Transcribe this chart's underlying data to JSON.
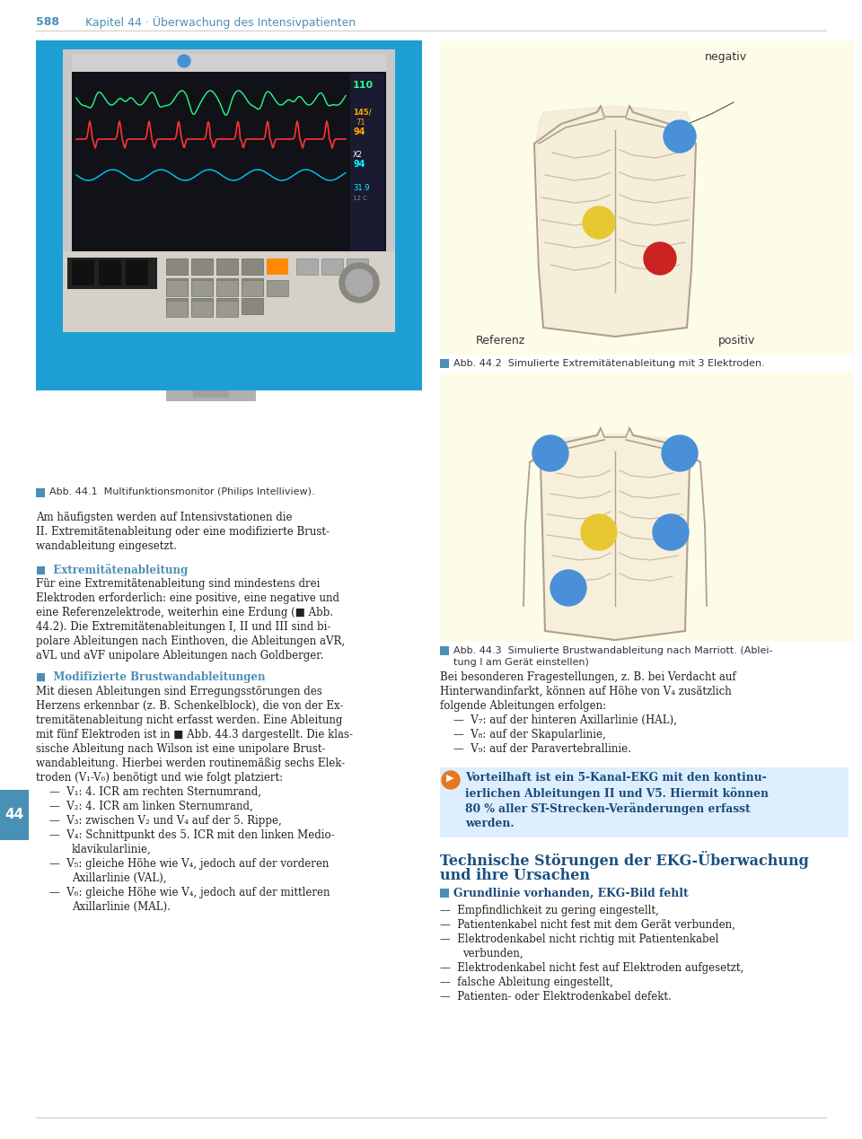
{
  "page_bg": "#ffffff",
  "header_color": "#4a8fb5",
  "fig1_bg": "#1e9fd4",
  "fig2_bg": "#fdfce8",
  "fig3_bg": "#fdfce8",
  "fig2_caption": "Abb. 44.2  Simulierte Extremitätenableitung mit 3 Elektroden.",
  "fig3_caption_line1": "Abb. 44.3  Simulierte Brustwandableitung nach Marriott. (Ablei-",
  "fig3_caption_line2": "tung I am Gerät einstellen)",
  "fig1_caption": "Abb. 44.1  Multifunktionsmonitor (Philips Intelliview).",
  "electrode_colors_fig2": {
    "negativ": "#4a90d9",
    "referenz": "#e8c832",
    "positiv": "#cc2222"
  },
  "electrode_colors_fig3": {
    "e1": "#4a90d9",
    "e2": "#4a90d9",
    "e3": "#e8c832",
    "e4": "#4a90d9",
    "e5": "#4a90d9"
  }
}
